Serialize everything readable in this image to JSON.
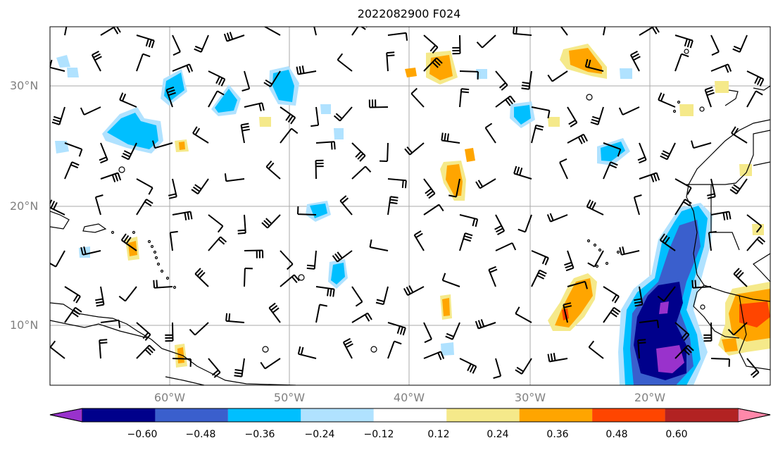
{
  "title": "2022082900 F024",
  "lat_labels": [
    "30°N",
    "20°N",
    "10°N"
  ],
  "lon_labels": [
    "60°W",
    "50°W",
    "40°W",
    "30°W",
    "20°W"
  ],
  "colorbar": {
    "ticks": [
      "−0.60",
      "−0.48",
      "−0.36",
      "−0.24",
      "−0.12",
      "0.12",
      "0.24",
      "0.36",
      "0.48",
      "0.60"
    ],
    "colors": [
      "#9932CC",
      "#00008B",
      "#3A5FCD",
      "#00BFFF",
      "#B0E2FF",
      "#FFFFFF",
      "#F5E98A",
      "#FFA500",
      "#FF4500",
      "#B22222",
      "#FF88AA"
    ]
  }
}
